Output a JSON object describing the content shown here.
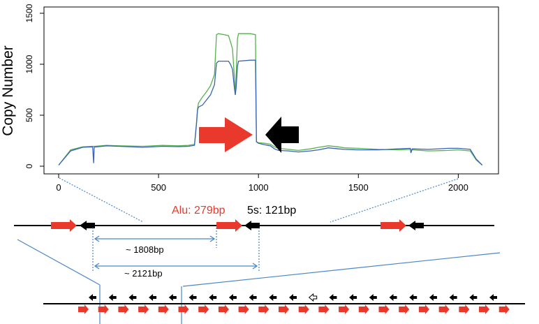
{
  "chart_data": {
    "type": "line",
    "ylabel": "Copy Number",
    "xlim": [
      0,
      2121
    ],
    "ylim": [
      0,
      1500
    ],
    "xticks": [
      "0",
      "500",
      "1000",
      "1500",
      "2000"
    ],
    "yticks": [
      "0",
      "500",
      "1000",
      "1500"
    ],
    "series": [
      {
        "color": "#3a62b8",
        "x": [
          0,
          60,
          120,
          170,
          175,
          178,
          180,
          240,
          300,
          420,
          520,
          600,
          650,
          680,
          690,
          695,
          700,
          720,
          740,
          760,
          780,
          790,
          800,
          850,
          860,
          870,
          880,
          884,
          888,
          895,
          900,
          960,
          985,
          990,
          1000,
          1030,
          1060,
          1080,
          1100,
          1150,
          1200,
          1260,
          1300,
          1350,
          1400,
          1430,
          1500,
          1600,
          1700,
          1760,
          1763,
          1770,
          1850,
          1950,
          2000,
          2060,
          2090,
          2120
        ],
        "y": [
          10,
          150,
          185,
          190,
          30,
          185,
          188,
          200,
          195,
          185,
          195,
          192,
          195,
          205,
          420,
          550,
          580,
          600,
          650,
          700,
          800,
          1010,
          1030,
          1030,
          1000,
          950,
          760,
          700,
          760,
          980,
          1030,
          1040,
          1040,
          240,
          225,
          210,
          200,
          170,
          155,
          150,
          140,
          150,
          160,
          180,
          170,
          165,
          160,
          160,
          170,
          175,
          130,
          170,
          165,
          175,
          175,
          165,
          70,
          10
        ]
      },
      {
        "color": "#55b24a",
        "x": [
          0,
          60,
          120,
          170,
          180,
          240,
          300,
          420,
          520,
          600,
          650,
          680,
          690,
          695,
          700,
          720,
          740,
          760,
          780,
          790,
          800,
          830,
          850,
          860,
          870,
          880,
          884,
          888,
          895,
          900,
          960,
          985,
          990,
          1000,
          1030,
          1060,
          1080,
          1100,
          1150,
          1200,
          1260,
          1300,
          1350,
          1400,
          1430,
          1500,
          1600,
          1700,
          1760,
          1770,
          1850,
          1950,
          2000,
          2060,
          2090,
          2120
        ],
        "y": [
          10,
          160,
          190,
          195,
          195,
          205,
          200,
          195,
          205,
          200,
          205,
          215,
          430,
          560,
          620,
          680,
          730,
          790,
          900,
          1290,
          1300,
          1290,
          1280,
          1220,
          1150,
          870,
          700,
          870,
          1250,
          1300,
          1300,
          1290,
          240,
          230,
          225,
          215,
          190,
          175,
          165,
          155,
          170,
          185,
          200,
          190,
          180,
          175,
          165,
          160,
          165,
          160,
          150,
          155,
          160,
          150,
          60,
          10
        ]
      }
    ]
  },
  "annotations": {
    "alu_label": "Alu: 279bp",
    "fives_label": "5s: 121bp",
    "dist1": "~ 1808bp",
    "dist2": "~ 2121bp"
  },
  "colors": {
    "alu": "#e8392c",
    "fives": "#000000",
    "guide": "#4a86c8",
    "axis": "#000000"
  },
  "tandem": {
    "black_count": 21,
    "red_count": 22,
    "open_index": 11
  }
}
